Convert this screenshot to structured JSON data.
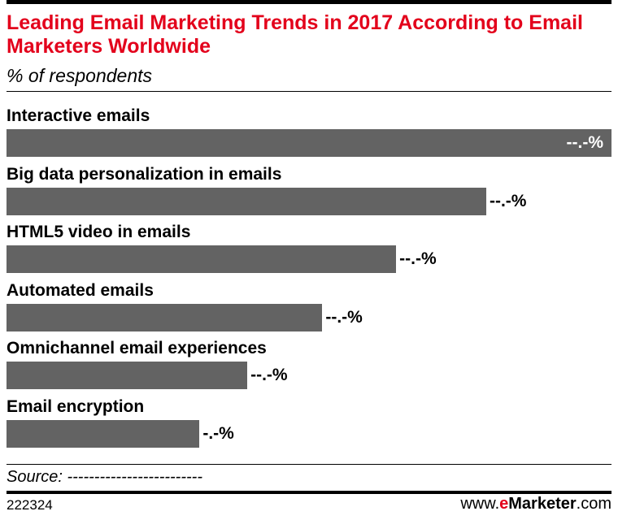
{
  "header": {
    "title": "Leading Email Marketing Trends in 2017 According to Email Marketers Worldwide",
    "subtitle": "% of respondents"
  },
  "chart_data": {
    "type": "bar",
    "orientation": "horizontal",
    "title": "Leading Email Marketing Trends in 2017 According to Email Marketers Worldwide",
    "subtitle": "% of respondents",
    "categories": [
      "Interactive emails",
      "Big data personalization in emails",
      "HTML5 video in emails",
      "Automated emails",
      "Omnichannel email experiences",
      "Email encryption"
    ],
    "values": [
      100,
      79.3,
      64.4,
      52.2,
      39.8,
      31.9
    ],
    "value_labels": [
      "--.-%",
      "--.-%",
      "--.-%",
      "--.-%",
      "--.-%",
      "-.-%"
    ],
    "xlim": [
      0,
      100
    ],
    "grid": false,
    "legend": "none",
    "bar_color": "#636363",
    "title_color": "#e3001b"
  },
  "footer": {
    "source": "Source: -------------------------",
    "chart_id": "222324",
    "brand_prefix": "www.",
    "brand_e": "e",
    "brand_name": "Marketer",
    "brand_suffix": ".com"
  }
}
